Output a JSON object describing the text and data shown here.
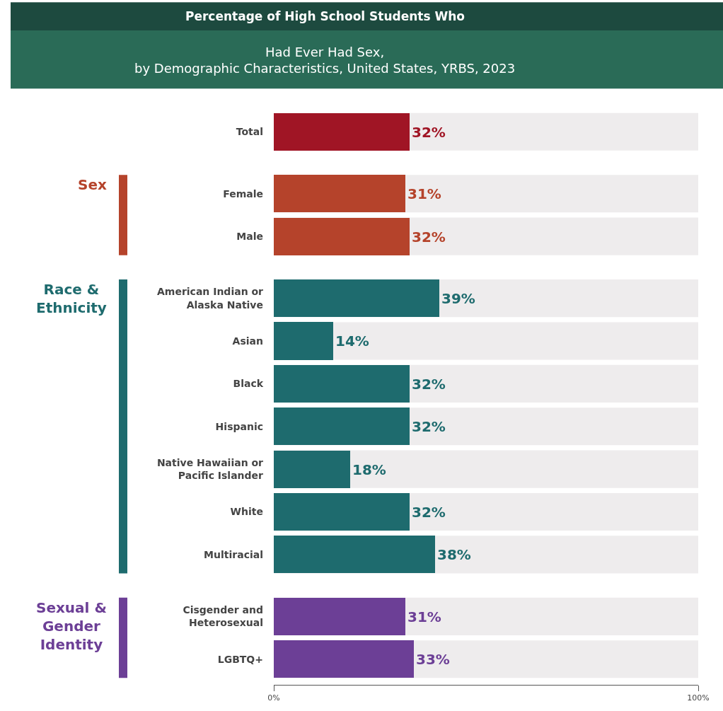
{
  "chart_data": {
    "type": "bar",
    "orientation": "horizontal",
    "title": "Percentage of High School Students Who",
    "subtitle": "Had Ever Had Sex, by Demographic Characteristics, United States, YRBS, 2023",
    "categories": [
      "Total",
      "Female",
      "Male",
      "American Indian or Alaska Native",
      "Asian",
      "Black",
      "Hispanic",
      "Native Hawaiian or Pacific Islander",
      "White",
      "Multiracial",
      "Cisgender and Heterosexual",
      "LGBTQ+"
    ],
    "values": [
      32,
      31,
      32,
      39,
      14,
      32,
      32,
      18,
      32,
      38,
      31,
      33
    ],
    "colors": [
      "#a01525",
      "#b5432b",
      "#b5432b",
      "#1e6b6e",
      "#1e6b6e",
      "#1e6b6e",
      "#1e6b6e",
      "#1e6b6e",
      "#1e6b6e",
      "#1e6b6e",
      "#6c3f96",
      "#6c3f96"
    ],
    "value_labels": [
      "32%",
      "31%",
      "32%",
      "39%",
      "14%",
      "32%",
      "32%",
      "18%",
      "32%",
      "38%",
      "31%",
      "33%"
    ],
    "annotations": [
      "Sex",
      "Race & Ethnicity",
      "Sexual & Gender Identity"
    ],
    "xlim": [
      0,
      100
    ],
    "xticks": [
      {
        "value": 0,
        "label": "0%"
      },
      {
        "value": 100,
        "label": "100%"
      }
    ],
    "grid": false,
    "legend": false
  }
}
